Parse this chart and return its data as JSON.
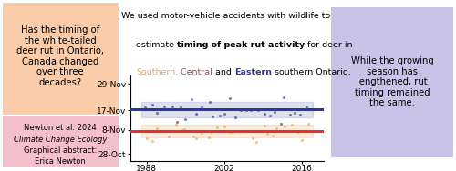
{
  "left_box_text": "Has the timing of\nthe white-tailed\ndeer rut in Ontario,\nCanada changed\nover three\ndecades?",
  "left_box_color": "#FACCAA",
  "citation_line1": "Newton et al. 2024",
  "citation_line2": "Climate Change Ecology",
  "citation_line3": "Graphical abstract:",
  "citation_line4": "Erica Newton",
  "citation_box_color": "#F5C0CE",
  "right_box_text": "While the growing\nseason has\nlengthened, rut\ntiming remained\nthe same.",
  "right_box_color": "#C9C3E8",
  "color_southern": "#F5A050",
  "color_central": "#E83030",
  "color_eastern": "#2B3B9A",
  "ytick_labels": [
    "28-Oct",
    "8-Nov",
    "17-Nov",
    "29-Nov"
  ],
  "ytick_values": [
    301,
    312,
    321,
    333
  ],
  "xtick_labels": [
    "1988",
    "2002",
    "2016"
  ],
  "xtick_values": [
    1988,
    2002,
    2016
  ],
  "eastern_line_y": 321.5,
  "southern_line_y": 311.5,
  "ymin": 298,
  "ymax": 337,
  "xmin": 1985,
  "xmax": 2020
}
